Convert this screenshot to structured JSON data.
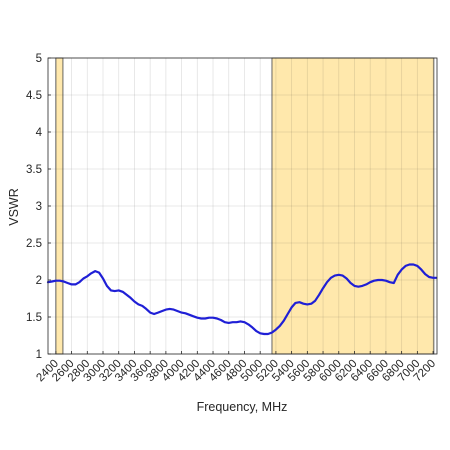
{
  "chart_data": {
    "type": "line",
    "title": "",
    "xlabel": "Frequency, MHz",
    "ylabel": "VSWR",
    "xlim": [
      2300,
      7250
    ],
    "ylim": [
      1,
      5
    ],
    "xticks": [
      2400,
      2600,
      2800,
      3000,
      3200,
      3400,
      3600,
      3800,
      4000,
      4200,
      4400,
      4600,
      4800,
      5000,
      5200,
      5400,
      5600,
      5800,
      6000,
      6200,
      6400,
      6600,
      6800,
      7000,
      7200
    ],
    "yticks": [
      1,
      1.5,
      2,
      2.5,
      3,
      3.5,
      4,
      4.5,
      5
    ],
    "xtick_labels": [
      "2400",
      "2600",
      "2800",
      "3000",
      "3200",
      "3400",
      "3600",
      "3800",
      "4000",
      "4200",
      "4400",
      "4600",
      "4800",
      "5000",
      "5200",
      "5400",
      "5600",
      "5800",
      "6000",
      "6200",
      "6400",
      "6600",
      "6800",
      "7000",
      "7200"
    ],
    "ytick_labels": [
      "1",
      "1.5",
      "2",
      "2.5",
      "3",
      "3.5",
      "4",
      "4.5",
      "5"
    ],
    "grid": true,
    "legend": "none",
    "colors": {
      "line": "#1f1fd6",
      "band": "#ffe8ac",
      "band_edge": "#555555"
    },
    "bands": [
      {
        "x0": 2400,
        "x1": 2490
      },
      {
        "x0": 5150,
        "x1": 7210
      }
    ],
    "series": [
      {
        "x": [
          2300,
          2350,
          2400,
          2450,
          2500,
          2550,
          2600,
          2650,
          2700,
          2750,
          2800,
          2850,
          2900,
          2950,
          3000,
          3050,
          3100,
          3150,
          3200,
          3250,
          3300,
          3350,
          3400,
          3450,
          3500,
          3550,
          3600,
          3650,
          3700,
          3750,
          3800,
          3850,
          3900,
          3950,
          4000,
          4050,
          4100,
          4150,
          4200,
          4250,
          4300,
          4350,
          4400,
          4450,
          4500,
          4550,
          4600,
          4650,
          4700,
          4750,
          4800,
          4850,
          4900,
          4950,
          5000,
          5050,
          5100,
          5150,
          5200,
          5250,
          5300,
          5350,
          5400,
          5450,
          5500,
          5550,
          5600,
          5650,
          5700,
          5750,
          5800,
          5850,
          5900,
          5950,
          6000,
          6050,
          6100,
          6150,
          6200,
          6250,
          6300,
          6350,
          6400,
          6450,
          6500,
          6550,
          6600,
          6650,
          6700,
          6750,
          6800,
          6850,
          6900,
          6950,
          7000,
          7050,
          7100,
          7150,
          7200,
          7240
        ],
        "y": [
          1.97,
          1.98,
          1.99,
          1.99,
          1.98,
          1.96,
          1.94,
          1.94,
          1.97,
          2.02,
          2.05,
          2.09,
          2.12,
          2.1,
          2.02,
          1.92,
          1.86,
          1.85,
          1.86,
          1.84,
          1.8,
          1.76,
          1.71,
          1.67,
          1.65,
          1.61,
          1.56,
          1.54,
          1.56,
          1.58,
          1.6,
          1.61,
          1.6,
          1.58,
          1.56,
          1.55,
          1.53,
          1.51,
          1.49,
          1.48,
          1.48,
          1.49,
          1.49,
          1.48,
          1.46,
          1.43,
          1.42,
          1.43,
          1.43,
          1.44,
          1.43,
          1.4,
          1.36,
          1.31,
          1.28,
          1.27,
          1.27,
          1.29,
          1.33,
          1.38,
          1.45,
          1.54,
          1.63,
          1.69,
          1.7,
          1.68,
          1.67,
          1.68,
          1.72,
          1.8,
          1.89,
          1.97,
          2.03,
          2.06,
          2.07,
          2.06,
          2.02,
          1.96,
          1.92,
          1.91,
          1.92,
          1.94,
          1.97,
          1.99,
          2,
          2,
          1.99,
          1.97,
          1.96,
          2.07,
          2.14,
          2.19,
          2.21,
          2.21,
          2.19,
          2.14,
          2.08,
          2.04,
          2.03,
          2.03
        ]
      }
    ]
  }
}
